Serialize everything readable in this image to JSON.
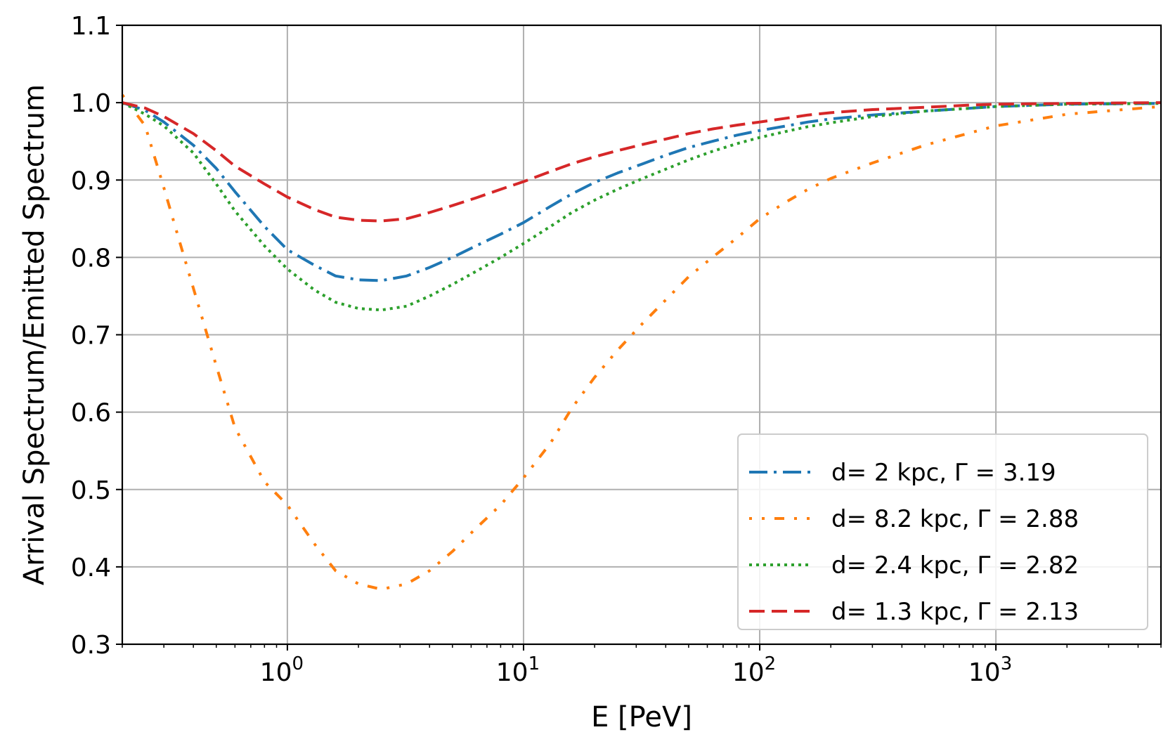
{
  "chart_data": {
    "type": "line",
    "title": "",
    "xlabel": "E [PeV]",
    "ylabel": "Arrival Spectrum/Emitted Spectrum",
    "xscale": "log",
    "xlim": [
      0.2,
      5000
    ],
    "ylim": [
      0.3,
      1.1
    ],
    "grid": true,
    "legend_position": "lower-right",
    "xticks": [
      {
        "value": 1,
        "base": "10",
        "exp": "0"
      },
      {
        "value": 10,
        "base": "10",
        "exp": "1"
      },
      {
        "value": 100,
        "base": "10",
        "exp": "2"
      },
      {
        "value": 1000,
        "base": "10",
        "exp": "3"
      }
    ],
    "yticks": [
      {
        "value": 0.3,
        "label": "0.3"
      },
      {
        "value": 0.4,
        "label": "0.4"
      },
      {
        "value": 0.5,
        "label": "0.5"
      },
      {
        "value": 0.6,
        "label": "0.6"
      },
      {
        "value": 0.7,
        "label": "0.7"
      },
      {
        "value": 0.8,
        "label": "0.8"
      },
      {
        "value": 0.9,
        "label": "0.9"
      },
      {
        "value": 1.0,
        "label": "1.0"
      },
      {
        "value": 1.1,
        "label": "1.1"
      }
    ],
    "series": [
      {
        "name": "d= 2 kpc, Γ = 3.19",
        "color": "#1f77b4",
        "dash": "dashdot",
        "x": [
          0.2,
          0.25,
          0.3,
          0.4,
          0.5,
          0.6,
          0.8,
          1.0,
          1.3,
          1.6,
          2.0,
          2.5,
          3.2,
          4.0,
          5.0,
          6.3,
          8.0,
          10,
          13,
          16,
          20,
          25,
          32,
          40,
          50,
          63,
          80,
          100,
          130,
          160,
          200,
          300,
          500,
          800,
          1000,
          2000,
          5000
        ],
        "y": [
          1.0,
          0.99,
          0.975,
          0.945,
          0.915,
          0.885,
          0.84,
          0.81,
          0.79,
          0.776,
          0.771,
          0.77,
          0.776,
          0.787,
          0.8,
          0.815,
          0.83,
          0.845,
          0.866,
          0.882,
          0.897,
          0.909,
          0.921,
          0.932,
          0.942,
          0.95,
          0.958,
          0.964,
          0.97,
          0.975,
          0.979,
          0.984,
          0.989,
          0.993,
          0.995,
          0.998,
          0.999
        ]
      },
      {
        "name": "d= 8.2 kpc, Γ = 2.88",
        "color": "#ff7f0e",
        "dash": "dashdotdot",
        "x": [
          0.2,
          0.25,
          0.3,
          0.35,
          0.4,
          0.5,
          0.6,
          0.8,
          1.0,
          1.3,
          1.6,
          2.0,
          2.5,
          3.2,
          4.0,
          5.0,
          6.3,
          8.0,
          10,
          13,
          16,
          20,
          25,
          32,
          40,
          50,
          63,
          80,
          100,
          130,
          160,
          200,
          300,
          500,
          800,
          1000,
          2000,
          5000
        ],
        "y": [
          1.01,
          0.97,
          0.89,
          0.82,
          0.76,
          0.66,
          0.58,
          0.51,
          0.48,
          0.43,
          0.395,
          0.378,
          0.371,
          0.378,
          0.395,
          0.42,
          0.45,
          0.48,
          0.515,
          0.56,
          0.605,
          0.645,
          0.68,
          0.715,
          0.745,
          0.775,
          0.8,
          0.825,
          0.85,
          0.872,
          0.888,
          0.902,
          0.922,
          0.945,
          0.962,
          0.97,
          0.985,
          0.995
        ]
      },
      {
        "name": "d= 2.4 kpc, Γ = 2.82",
        "color": "#2ca02c",
        "dash": "dotted",
        "x": [
          0.2,
          0.25,
          0.3,
          0.4,
          0.5,
          0.6,
          0.8,
          1.0,
          1.3,
          1.6,
          2.0,
          2.5,
          3.2,
          4.0,
          5.0,
          6.3,
          8.0,
          10,
          13,
          16,
          20,
          25,
          32,
          40,
          50,
          63,
          80,
          100,
          130,
          160,
          200,
          300,
          500,
          800,
          1000,
          2000,
          5000
        ],
        "y": [
          1.0,
          0.985,
          0.97,
          0.935,
          0.895,
          0.86,
          0.815,
          0.785,
          0.758,
          0.742,
          0.734,
          0.732,
          0.737,
          0.75,
          0.765,
          0.782,
          0.8,
          0.818,
          0.84,
          0.858,
          0.874,
          0.888,
          0.902,
          0.914,
          0.926,
          0.937,
          0.947,
          0.955,
          0.963,
          0.969,
          0.974,
          0.982,
          0.989,
          0.993,
          0.995,
          0.998,
          0.999
        ]
      },
      {
        "name": "d= 1.3 kpc, Γ = 2.13",
        "color": "#d62728",
        "dash": "dashed",
        "x": [
          0.2,
          0.25,
          0.3,
          0.4,
          0.5,
          0.6,
          0.8,
          1.0,
          1.3,
          1.6,
          2.0,
          2.5,
          3.2,
          4.0,
          5.0,
          6.3,
          8.0,
          10,
          13,
          16,
          20,
          25,
          32,
          40,
          50,
          63,
          80,
          100,
          130,
          160,
          200,
          300,
          500,
          800,
          1000,
          2000,
          5000
        ],
        "y": [
          1.0,
          0.993,
          0.982,
          0.96,
          0.938,
          0.918,
          0.895,
          0.878,
          0.862,
          0.852,
          0.848,
          0.847,
          0.85,
          0.858,
          0.867,
          0.877,
          0.888,
          0.898,
          0.911,
          0.921,
          0.93,
          0.938,
          0.946,
          0.953,
          0.96,
          0.966,
          0.971,
          0.975,
          0.98,
          0.984,
          0.987,
          0.991,
          0.994,
          0.997,
          0.998,
          0.999,
          1.0
        ]
      }
    ]
  }
}
